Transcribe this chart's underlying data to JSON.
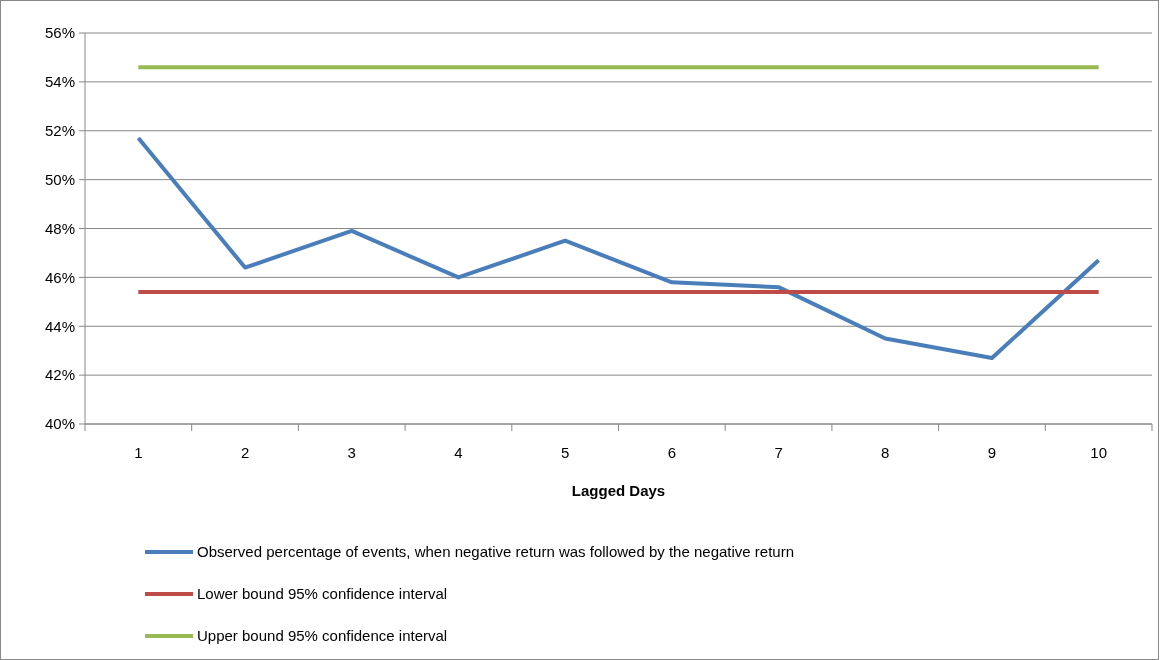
{
  "chart_data": {
    "type": "line",
    "xlabel": "Lagged Days",
    "categories": [
      "1",
      "2",
      "3",
      "4",
      "5",
      "6",
      "7",
      "8",
      "9",
      "10"
    ],
    "series": [
      {
        "name": "Observed percentage of events, when negative return was followed by the negative return",
        "color": "#4a7ebb",
        "values": [
          51.7,
          46.4,
          47.9,
          46.0,
          47.5,
          45.8,
          45.6,
          43.5,
          42.7,
          46.7
        ]
      },
      {
        "name": "Lower bound 95% confidence interval",
        "color": "#be4b48",
        "values": [
          45.4,
          45.4,
          45.4,
          45.4,
          45.4,
          45.4,
          45.4,
          45.4,
          45.4,
          45.4
        ]
      },
      {
        "name": "Upper bound 95% confidence interval",
        "color": "#98b954",
        "values": [
          54.6,
          54.6,
          54.6,
          54.6,
          54.6,
          54.6,
          54.6,
          54.6,
          54.6,
          54.6
        ]
      }
    ],
    "ylim": [
      40,
      56
    ],
    "yticks": [
      {
        "value": 40,
        "label": "40%"
      },
      {
        "value": 42,
        "label": "42%"
      },
      {
        "value": 44,
        "label": "44%"
      },
      {
        "value": 46,
        "label": "46%"
      },
      {
        "value": 48,
        "label": "48%"
      },
      {
        "value": 50,
        "label": "50%"
      },
      {
        "value": 52,
        "label": "52%"
      },
      {
        "value": 54,
        "label": "54%"
      },
      {
        "value": 56,
        "label": "56%"
      }
    ],
    "grid": "y",
    "legend": "bottom",
    "marker": "none",
    "line_style": "solid"
  }
}
